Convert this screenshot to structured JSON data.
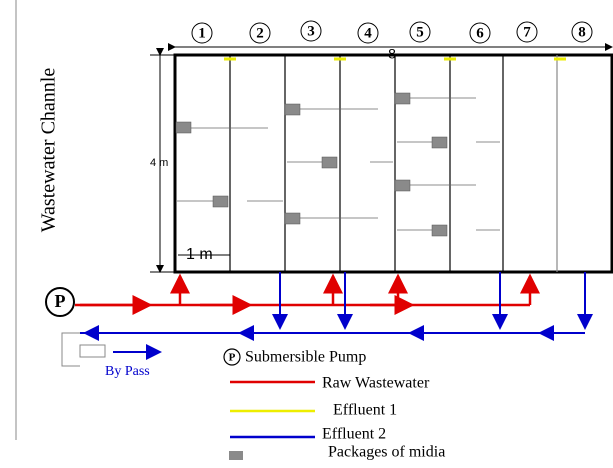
{
  "channel_label": "Wastewater Channle",
  "tanks": [
    "1",
    "2",
    "3",
    "4",
    "5",
    "6",
    "7",
    "8"
  ],
  "dimensions": {
    "total_width": "8",
    "height": "4 m",
    "unit_width": "1 m"
  },
  "pump_symbol": "P",
  "bypass_label": "By Pass",
  "legend": [
    {
      "symbol": "P",
      "label": "Submersible Pump"
    },
    {
      "label": "Raw Wastewater"
    },
    {
      "label": "Effluent 1"
    },
    {
      "label": "Effluent 2"
    },
    {
      "label": "Packages of midia"
    }
  ]
}
